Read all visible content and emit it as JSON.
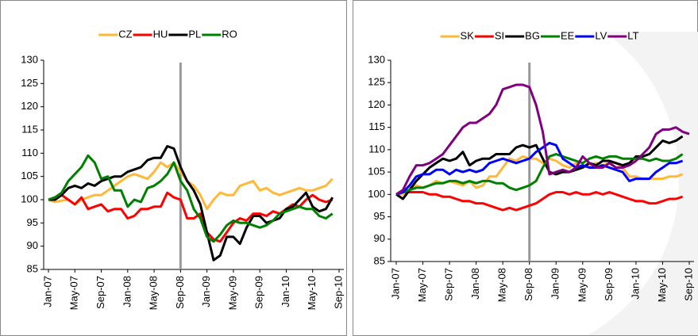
{
  "chart_data": [
    {
      "type": "line",
      "categories": [
        "Jan-07",
        null,
        null,
        null,
        "May-07",
        null,
        null,
        null,
        "Sep-07",
        null,
        null,
        null,
        "Jan-08",
        null,
        null,
        null,
        "May-08",
        null,
        null,
        null,
        "Sep-08",
        null,
        null,
        null,
        "Jan-09",
        null,
        null,
        null,
        "May-09",
        null,
        null,
        null,
        "Sep-09",
        null,
        null,
        null,
        "Jan-10",
        null,
        null,
        null,
        "May-10",
        null,
        null,
        null,
        "Sep-10"
      ],
      "ylim": [
        85,
        130
      ],
      "yticks": [
        85,
        90,
        95,
        100,
        105,
        110,
        115,
        120,
        125,
        130
      ],
      "vline": "Sep-08",
      "series": [
        {
          "name": "CZ",
          "color": "#ffb838",
          "values": [
            100,
            99.5,
            99.8,
            100,
            99,
            100,
            100.5,
            101,
            101,
            102,
            103,
            104,
            105,
            105.5,
            105,
            104.5,
            106,
            108,
            107,
            108,
            106,
            104,
            103,
            101,
            98,
            100,
            101.5,
            101,
            101,
            103,
            103.5,
            104,
            102,
            102.5,
            101.5,
            101,
            101.5,
            102,
            102.5,
            102,
            102,
            102.5,
            103,
            104.5,
            null
          ]
        },
        {
          "name": "HU",
          "color": "#ff0000",
          "values": [
            100,
            100.5,
            101,
            100,
            99,
            100.5,
            98,
            98.5,
            99,
            97.5,
            98,
            98,
            96,
            96.5,
            98,
            98,
            98.5,
            98.5,
            101.5,
            100.5,
            100,
            96,
            96,
            97,
            93,
            91.5,
            91,
            93,
            95,
            96,
            95.5,
            97,
            97,
            96.5,
            97.5,
            97,
            98,
            99,
            98.5,
            100,
            101,
            100,
            99.5,
            100,
            null
          ]
        },
        {
          "name": "PL",
          "color": "#000000",
          "values": [
            100,
            100,
            101,
            102.5,
            103,
            102.5,
            103.5,
            103,
            104,
            104.5,
            105,
            105,
            106,
            106.5,
            107,
            108.5,
            109,
            109,
            111.5,
            111,
            107,
            104,
            102,
            99,
            93,
            87,
            88,
            92,
            92,
            90.5,
            94,
            96.5,
            96.5,
            95,
            95.5,
            96,
            98,
            98.5,
            100,
            101.5,
            98.5,
            97.5,
            98,
            100.5,
            null
          ]
        },
        {
          "name": "RO",
          "color": "#008000",
          "values": [
            100,
            100.5,
            101.5,
            104,
            105.5,
            107,
            109.5,
            108,
            104.5,
            105,
            102,
            102,
            98.5,
            100,
            99.5,
            102.5,
            103,
            104,
            105.5,
            108,
            104,
            102,
            98,
            96,
            92,
            91,
            92.5,
            94.5,
            95.5,
            95,
            95,
            94.5,
            94,
            94.5,
            95.5,
            97,
            97.5,
            98,
            98.5,
            98,
            98,
            96.5,
            96,
            97,
            null
          ]
        }
      ]
    },
    {
      "type": "line",
      "categories": [
        "Jan-07",
        null,
        null,
        null,
        "May-07",
        null,
        null,
        null,
        "Sep-07",
        null,
        null,
        null,
        "Jan-08",
        null,
        null,
        null,
        "May-08",
        null,
        null,
        null,
        "Sep-08",
        null,
        null,
        null,
        "Jan-09",
        null,
        null,
        null,
        "May-09",
        null,
        null,
        null,
        "Sep-09",
        null,
        null,
        null,
        "Jan-10",
        null,
        null,
        null,
        "May-10",
        null,
        null,
        null,
        "Sep-10"
      ],
      "ylim": [
        85,
        130
      ],
      "yticks": [
        85,
        90,
        95,
        100,
        105,
        110,
        115,
        120,
        125,
        130
      ],
      "vline": "Sep-08",
      "series": [
        {
          "name": "SK",
          "color": "#ffb838",
          "values": [
            100,
            100,
            101,
            102,
            101.5,
            102,
            103,
            102.5,
            103,
            102.5,
            102,
            103,
            101.5,
            102,
            104,
            104,
            106,
            108,
            107.5,
            108.5,
            108,
            108,
            107,
            108,
            107.5,
            106.5,
            106,
            107,
            106,
            106.5,
            107,
            106.5,
            107,
            107,
            106,
            104,
            104,
            103.5,
            103.5,
            103.5,
            103.5,
            104,
            104,
            104.5,
            null
          ]
        },
        {
          "name": "SI",
          "color": "#ff0000",
          "values": [
            100,
            100.5,
            100.5,
            100.5,
            100.5,
            100,
            100,
            99.5,
            99.5,
            99,
            98.5,
            98.5,
            98,
            98,
            97.5,
            97,
            96.5,
            97,
            96.5,
            97,
            97.5,
            98,
            99,
            100,
            100.5,
            100.5,
            100,
            100.5,
            100,
            100,
            100.5,
            100,
            100.5,
            100,
            99.5,
            99,
            98.5,
            98.5,
            98,
            98,
            98.5,
            99,
            99,
            99.5,
            null
          ]
        },
        {
          "name": "BG",
          "color": "#000000",
          "values": [
            100,
            99,
            101,
            103,
            104.5,
            106,
            107,
            108,
            107.5,
            108,
            109.5,
            106.5,
            107.5,
            108,
            108,
            109,
            109,
            109,
            110.5,
            111,
            110.5,
            111,
            108,
            105,
            104.5,
            105,
            105,
            105.5,
            106,
            107,
            106.5,
            107.5,
            107.5,
            107,
            106.5,
            107,
            108.5,
            108.5,
            109,
            110.5,
            112,
            111.5,
            112,
            113,
            null
          ]
        },
        {
          "name": "EE",
          "color": "#008000",
          "values": [
            100,
            100.5,
            101,
            101.5,
            101.5,
            102,
            102.5,
            102.5,
            103,
            103,
            102.5,
            103,
            102.5,
            103,
            103,
            102.5,
            102.5,
            101.5,
            101,
            101.5,
            102,
            103,
            106,
            108.5,
            109,
            108.5,
            108,
            107.5,
            107,
            108,
            108.5,
            108,
            108.5,
            108.5,
            108,
            108,
            108,
            108,
            107.5,
            108,
            107.5,
            107.5,
            108,
            109,
            null
          ]
        },
        {
          "name": "LV",
          "color": "#0000ff",
          "values": [
            100,
            100.5,
            102,
            104,
            104.5,
            104.5,
            105.5,
            105.5,
            104.5,
            105.5,
            105,
            105.5,
            105,
            105.5,
            107,
            107.5,
            108,
            107.5,
            107,
            107.5,
            108,
            109.5,
            110.5,
            111.5,
            111,
            108,
            107,
            106,
            106.5,
            106,
            106,
            106.5,
            106,
            105.5,
            105,
            103,
            103.5,
            103.5,
            103.5,
            105,
            106,
            107,
            107,
            107.5,
            null
          ]
        },
        {
          "name": "LT",
          "color": "#800080",
          "values": [
            100,
            101,
            104,
            106.5,
            106.5,
            107,
            108,
            109,
            111,
            113,
            115,
            116,
            116,
            117,
            118,
            120,
            123.5,
            124,
            124.5,
            124.5,
            124,
            120,
            114,
            104.5,
            105,
            105.5,
            105,
            106,
            108.5,
            107,
            106,
            106,
            107,
            106,
            106,
            106.5,
            107.5,
            109,
            110.5,
            113.5,
            114.5,
            114.5,
            115,
            114,
            113.5
          ]
        }
      ]
    }
  ]
}
